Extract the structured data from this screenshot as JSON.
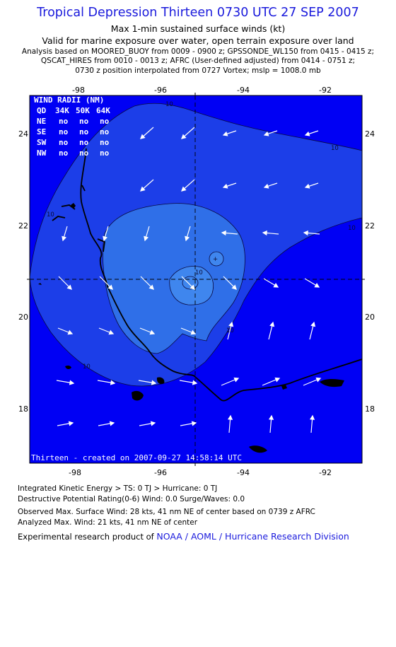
{
  "header": {
    "title": "Tropical Depression Thirteen 0730 UTC 27 SEP 2007",
    "subtitle": "Max 1-min sustained surface winds (kt)",
    "valid": "Valid for marine exposure over water, open terrain exposure over land",
    "analysis_line1": "Analysis based on  MOORED_BUOY from 0009 - 0900 z;  GPSSONDE_WL150 from 0415 - 0415 z;",
    "analysis_line2": "QSCAT_HIRES from 0010 - 0013 z;  AFRC (User-defined adjusted) from 0414 - 0751 z;",
    "analysis_line3": "0730 z position interpolated from 0727 Vortex; mslp = 1008.0 mb"
  },
  "map": {
    "lon_ticks": [
      "-98",
      "-96",
      "-94",
      "-92"
    ],
    "lat_ticks": [
      "24",
      "22",
      "20",
      "18"
    ],
    "contour_labels": [
      "10",
      "10",
      "10",
      "10",
      "10",
      "10",
      "10"
    ],
    "colors": {
      "outer": "#0000f4",
      "band10": "#1c3ee8",
      "band20": "#2f6fe8",
      "core": "#3f86ee",
      "coast": "#000000",
      "arrows": "#ffffff"
    },
    "credit": "Thirteen - created on 2007-09-27 14:58:14 UTC"
  },
  "wind_radii": {
    "title": "WIND RADII (NM)",
    "headers": [
      "QD",
      "34K",
      "50K",
      "64K"
    ],
    "rows": [
      {
        "quad": "NE",
        "values": [
          "no",
          "no",
          "no"
        ]
      },
      {
        "quad": "SE",
        "values": [
          "no",
          "no",
          "no"
        ]
      },
      {
        "quad": "SW",
        "values": [
          "no",
          "no",
          "no"
        ]
      },
      {
        "quad": "NW",
        "values": [
          "no",
          "no",
          "no"
        ]
      }
    ]
  },
  "footer": {
    "ike": "Integrated Kinetic Energy > TS: 0 TJ   > Hurricane: 0 TJ",
    "dpr": "Destructive Potential Rating(0-6)   Wind: 0.0 Surge/Waves: 0.0",
    "observed": "Observed Max. Surface Wind: 28 kts, 41 nm NE of center based on 0739 z AFRC",
    "analyzed": "Analyzed Max. Wind: 21 kts, 41 nm NE of center",
    "product_prefix": "Experimental research product of ",
    "product_link": "NOAA / AOML / Hurricane Research Division"
  }
}
